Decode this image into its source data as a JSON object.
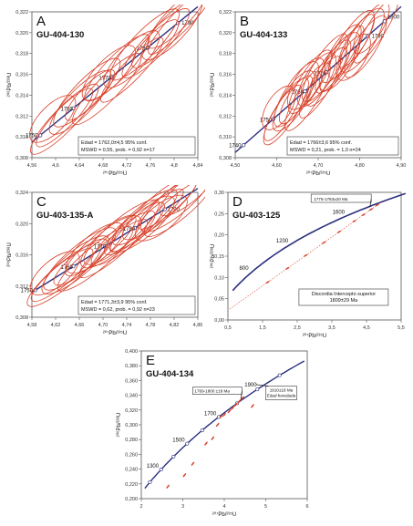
{
  "chart_data": [
    {
      "id": "A",
      "type": "scatter",
      "panel_letter": "A",
      "sample": "GU-404-130",
      "xlabel": "²⁰⁷Pb/²³⁵U",
      "ylabel": "²⁰⁶Pb/²³⁸U",
      "xlim": [
        4.56,
        4.84
      ],
      "ylim": [
        0.308,
        0.322
      ],
      "xticks": [
        "4,56",
        "4,6",
        "4,64",
        "4,68",
        "4,72",
        "4,76",
        "4,8",
        "4,84"
      ],
      "yticks": [
        "0,308",
        "0,310",
        "0,312",
        "0,314",
        "0,316",
        "0,318",
        "0,320",
        "0,322"
      ],
      "concordia_labels": [
        "1750",
        "1760",
        "1770",
        "1780",
        "1790"
      ],
      "box_lines": [
        "Edad = 1762,0±4,5 95% conf.",
        "MSWD = 0,55, prob. = 0,92 n=17"
      ],
      "ellipse_count": 17
    },
    {
      "id": "B",
      "type": "scatter",
      "panel_letter": "B",
      "sample": "GU-404-133",
      "xlabel": "²⁰⁷Pb/²³⁵U",
      "ylabel": "²⁰⁶Pb/²³⁸U",
      "xlim": [
        4.5,
        4.9
      ],
      "ylim": [
        0.308,
        0.322
      ],
      "xticks": [
        "4,50",
        "4,60",
        "4,70",
        "4,80",
        "4,90"
      ],
      "yticks": [
        "0,308",
        "0,310",
        "0,312",
        "0,314",
        "0,316",
        "0,318",
        "0,320",
        "0,322"
      ],
      "concordia_labels": [
        "1740",
        "1750",
        "1760",
        "1770",
        "1790",
        "1800"
      ],
      "box_lines": [
        "Edad = 1766±3,6 95% conf.",
        "MSWD = 0,21, prob. = 1,0 n=24"
      ],
      "ellipse_count": 24
    },
    {
      "id": "C",
      "type": "scatter",
      "panel_letter": "C",
      "sample": "GU-403-135-A",
      "xlabel": "²⁰⁷Pb/²³⁵U",
      "ylabel": "²⁰⁶Pb/²³⁸U",
      "xlim": [
        4.58,
        4.86
      ],
      "ylim": [
        0.308,
        0.324
      ],
      "xticks": [
        "4,58",
        "4,62",
        "4,66",
        "4,70",
        "4,74",
        "4,78",
        "4,82",
        "4,86"
      ],
      "yticks": [
        "0,308",
        "0,312",
        "0,316",
        "0,320",
        "0,324"
      ],
      "concordia_labels": [
        "1750",
        "1760",
        "1770",
        "1780",
        "1790"
      ],
      "box_lines": [
        "Edad = 1771,3±3,9 95% conf.",
        "MSWD = 0,62, prob. = 0,92 n=23"
      ],
      "ellipse_count": 23
    },
    {
      "id": "D",
      "type": "scatter",
      "panel_letter": "D",
      "sample": "GU-403-125",
      "xlabel": "²⁰⁷Pb/²³⁵U",
      "ylabel": "²⁰⁶Pb/²³⁸U",
      "xlim": [
        0.5,
        5.5
      ],
      "ylim": [
        0.0,
        0.35
      ],
      "xticks": [
        "0,5",
        "1,5",
        "2,5",
        "3,5",
        "4,5",
        "5,5"
      ],
      "yticks": [
        "0,00",
        "0,05",
        "0,10",
        "0,15",
        "0,20",
        "0,25",
        "0,30"
      ],
      "concordia_labels": [
        "800",
        "1200",
        "1600"
      ],
      "callout": "1775-1783±20 Ma",
      "box_lines": [
        "Discordia Intercepto superior",
        "1809±29 Ma"
      ]
    },
    {
      "id": "E",
      "type": "scatter",
      "panel_letter": "E",
      "sample": "GU-404-134",
      "xlabel": "²⁰⁷Pb/²³⁵U",
      "ylabel": "²⁰⁶Pb/²³⁸U",
      "xlim": [
        2,
        7
      ],
      "ylim": [
        0.18,
        0.4
      ],
      "xticks": [
        "2",
        "3",
        "4",
        "5",
        "6"
      ],
      "yticks": [
        "0,200",
        "0,220",
        "0,240",
        "0,260",
        "0,280",
        "0,300",
        "0,320",
        "0,340",
        "0,360",
        "0,380",
        "0,400"
      ],
      "concordia_labels": [
        "1300",
        "1500",
        "1700",
        "1900"
      ],
      "callout_1": "1769-1800 ±18 Ma",
      "callout_2_lines": [
        "1910±18 Ma",
        "Edad heredada"
      ]
    }
  ]
}
